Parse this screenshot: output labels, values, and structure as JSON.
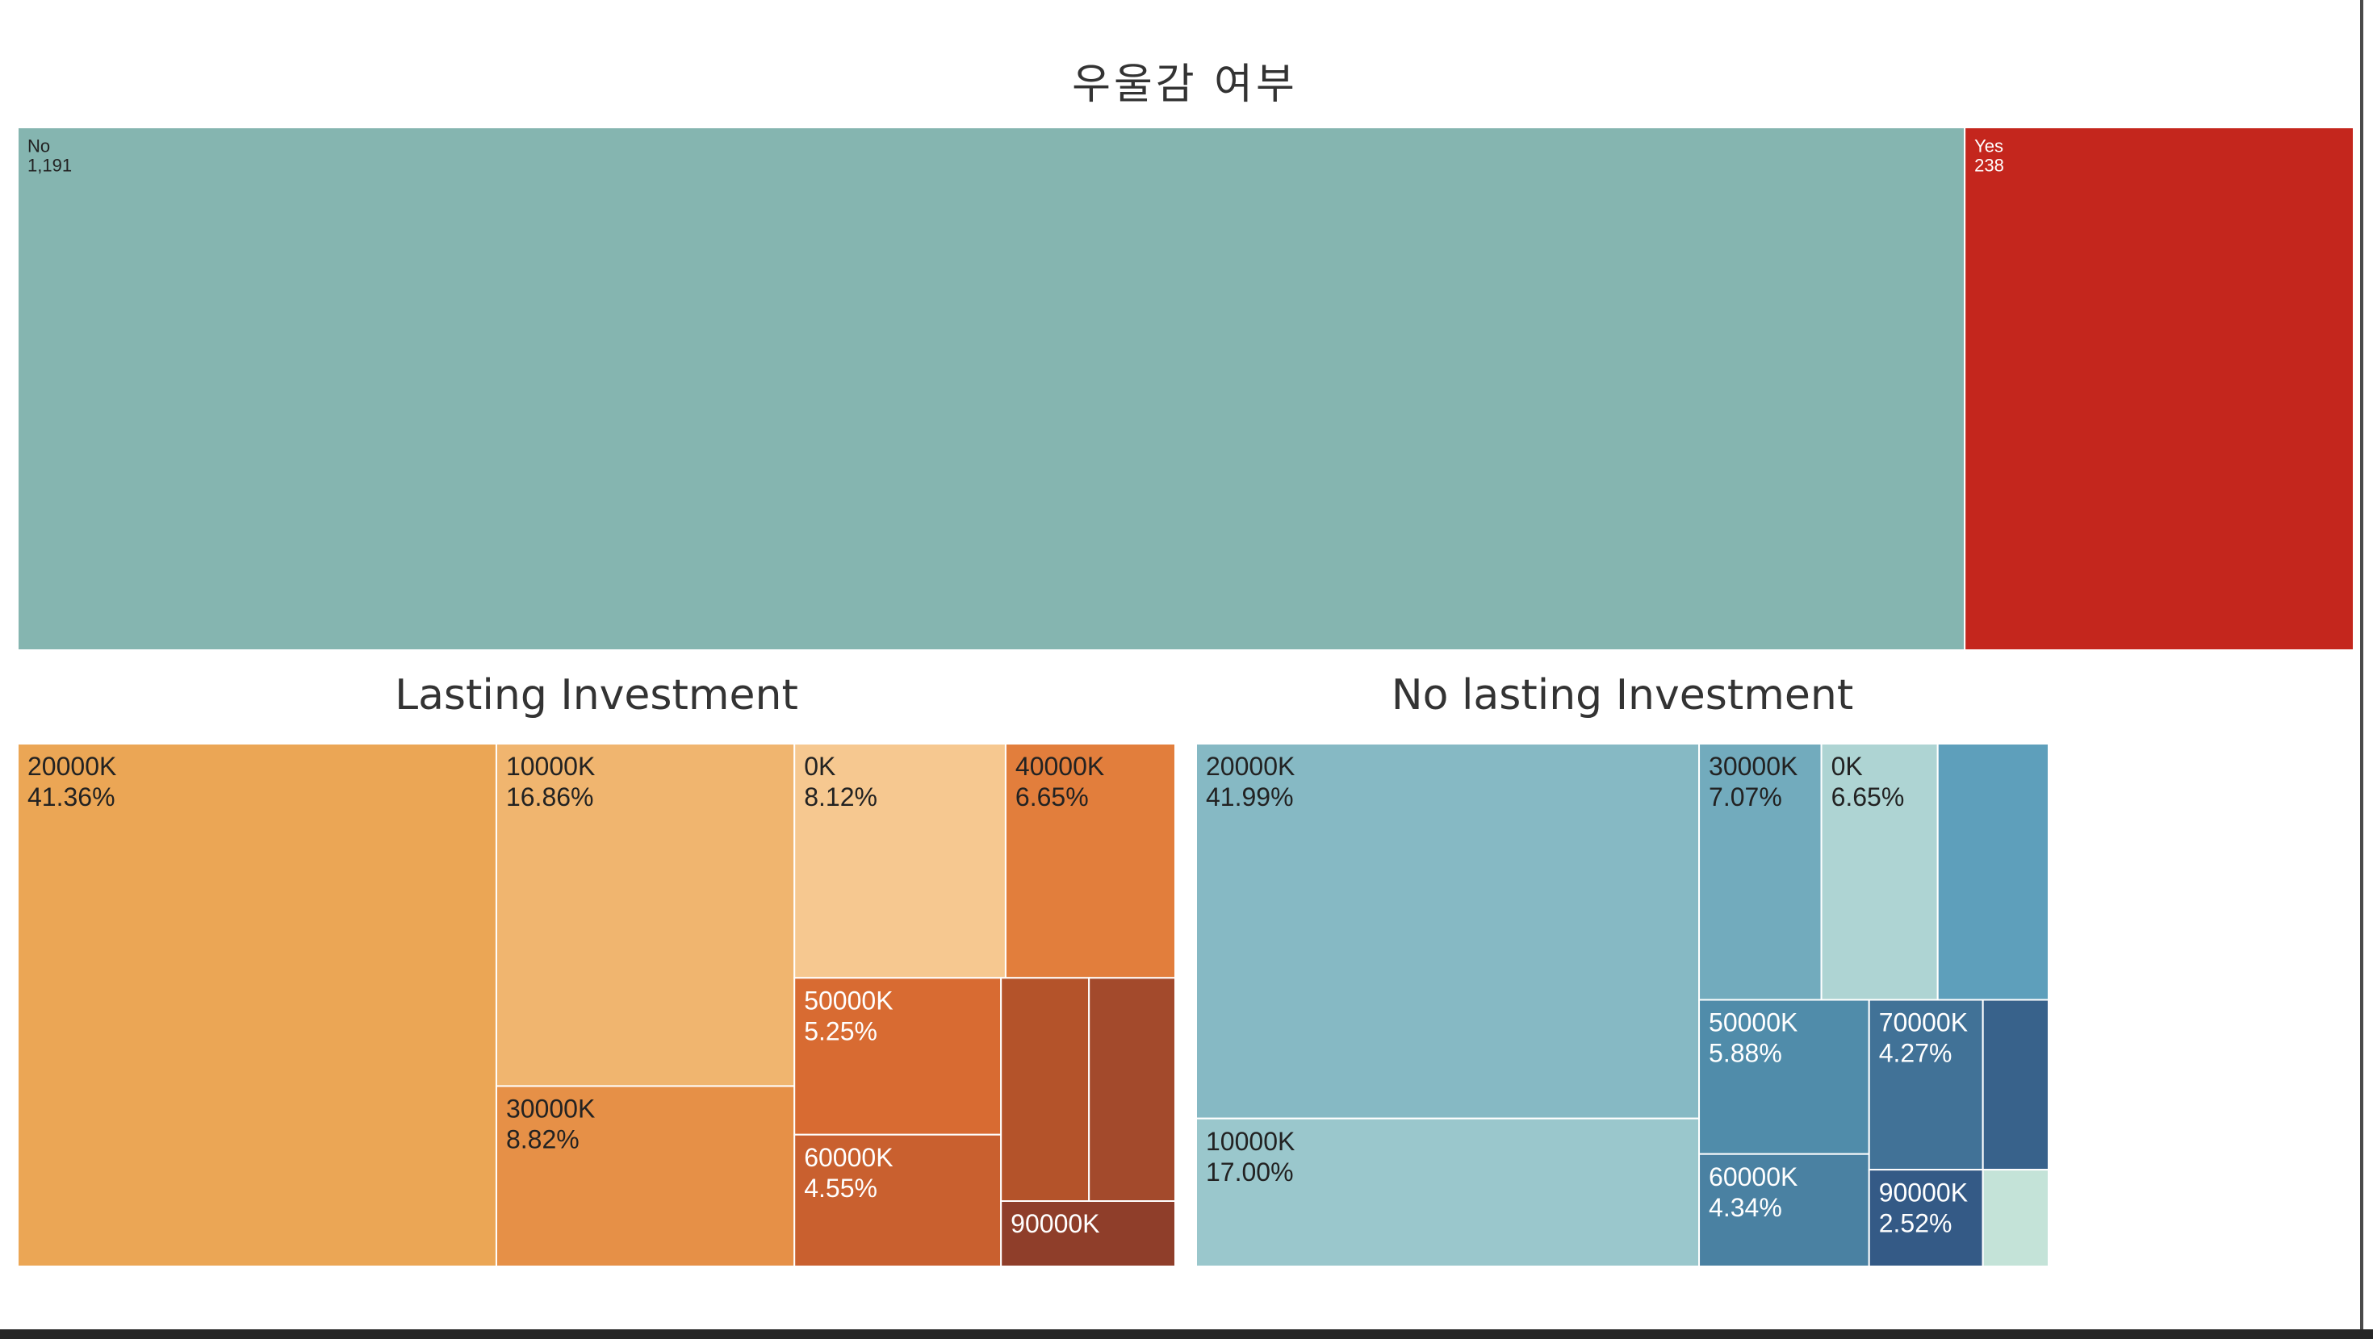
{
  "charts": {
    "top": {
      "title": "우울감 여부"
    },
    "lasting": {
      "title": "Lasting Investment"
    },
    "nolasting": {
      "title": "No lasting Investment"
    }
  },
  "chart_data": [
    {
      "type": "treemap",
      "title": "우울감 여부",
      "items": [
        {
          "label": "No",
          "value_text": "1,191",
          "value": 1191,
          "color": "#85b5b0",
          "text_color": "#222222"
        },
        {
          "label": "Yes",
          "value_text": "238",
          "value": 238,
          "color": "#c4261d",
          "text_color": "#ffffff"
        }
      ]
    },
    {
      "type": "treemap",
      "title": "Lasting Investment",
      "items": [
        {
          "label": "20000K",
          "value_text": "41.36%",
          "value": 41.36,
          "color": "#eba655",
          "text_color": "#222222"
        },
        {
          "label": "10000K",
          "value_text": "16.86%",
          "value": 16.86,
          "color": "#f0b56f",
          "text_color": "#222222"
        },
        {
          "label": "30000K",
          "value_text": "8.82%",
          "value": 8.82,
          "color": "#e69047",
          "text_color": "#222222"
        },
        {
          "label": "0K",
          "value_text": "8.12%",
          "value": 8.12,
          "color": "#f6c890",
          "text_color": "#222222"
        },
        {
          "label": "40000K",
          "value_text": "6.65%",
          "value": 6.65,
          "color": "#e27e3c",
          "text_color": "#222222"
        },
        {
          "label": "50000K",
          "value_text": "5.25%",
          "value": 5.25,
          "color": "#d86b32",
          "text_color": "#ffffff"
        },
        {
          "label": "60000K",
          "value_text": "4.55%",
          "value": 4.55,
          "color": "#c9602f",
          "text_color": "#ffffff"
        },
        {
          "label": "",
          "value_text": "",
          "value": 3.3,
          "color": "#b4532a",
          "text_color": "#ffffff"
        },
        {
          "label": "",
          "value_text": "",
          "value": 3.0,
          "color": "#a34a2c",
          "text_color": "#ffffff"
        },
        {
          "label": "90000K",
          "value_text": "",
          "value": 2.09,
          "color": "#8f3e2a",
          "text_color": "#ffffff"
        }
      ]
    },
    {
      "type": "treemap",
      "title": "No lasting Investment",
      "items": [
        {
          "label": "20000K",
          "value_text": "41.99%",
          "value": 41.99,
          "color": "#86b9c4",
          "text_color": "#222222"
        },
        {
          "label": "10000K",
          "value_text": "17.00%",
          "value": 17.0,
          "color": "#9ac7cc",
          "text_color": "#222222"
        },
        {
          "label": "30000K",
          "value_text": "7.07%",
          "value": 7.07,
          "color": "#72abbd",
          "text_color": "#222222"
        },
        {
          "label": "0K",
          "value_text": "6.65%",
          "value": 6.65,
          "color": "#aed4d3",
          "text_color": "#222222"
        },
        {
          "label": "",
          "value_text": "",
          "value": 6.3,
          "color": "#5e9fbb",
          "text_color": "#ffffff"
        },
        {
          "label": "50000K",
          "value_text": "5.88%",
          "value": 5.88,
          "color": "#508caa",
          "text_color": "#ffffff"
        },
        {
          "label": "60000K",
          "value_text": "4.34%",
          "value": 4.34,
          "color": "#4a81a2",
          "text_color": "#ffffff"
        },
        {
          "label": "70000K",
          "value_text": "4.27%",
          "value": 4.27,
          "color": "#417297",
          "text_color": "#ffffff"
        },
        {
          "label": "",
          "value_text": "",
          "value": 2.4,
          "color": "#38628b",
          "text_color": "#ffffff"
        },
        {
          "label": "90000K",
          "value_text": "2.52%",
          "value": 2.52,
          "color": "#345a86",
          "text_color": "#ffffff"
        },
        {
          "label": "",
          "value_text": "",
          "value": 1.6,
          "color": "#c4e3d8",
          "text_color": "#222222"
        }
      ]
    }
  ]
}
